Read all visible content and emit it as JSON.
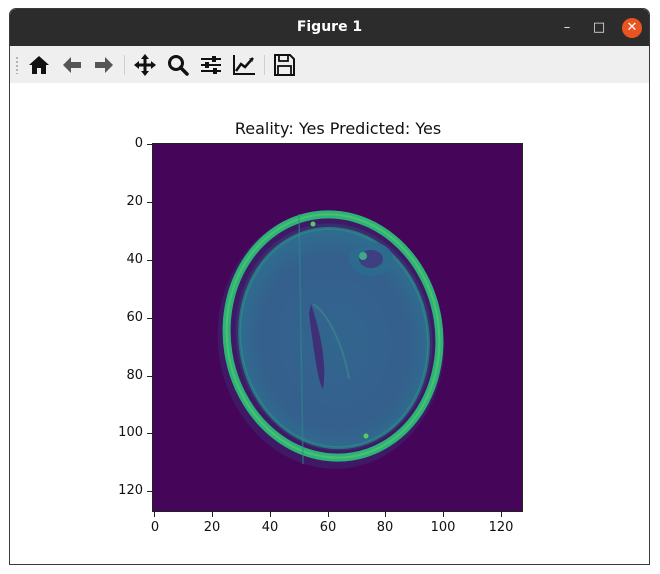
{
  "window": {
    "title": "Figure 1"
  },
  "window_controls": {
    "minimize": "–",
    "maximize": "□",
    "close": "✕"
  },
  "toolbar": {
    "buttons": [
      {
        "name": "home-button",
        "icon": "home-icon"
      },
      {
        "name": "back-button",
        "icon": "arrow-left-icon"
      },
      {
        "name": "forward-button",
        "icon": "arrow-right-icon"
      },
      {
        "name": "pan-button",
        "icon": "move-icon"
      },
      {
        "name": "zoom-button",
        "icon": "magnifier-icon"
      },
      {
        "name": "configure-subplots-button",
        "icon": "sliders-icon"
      },
      {
        "name": "edit-axis-button",
        "icon": "line-chart-icon"
      },
      {
        "name": "save-button",
        "icon": "floppy-disk-icon"
      }
    ]
  },
  "plot": {
    "title": "Reality: Yes Predicted: Yes",
    "image_colormap": "viridis",
    "xticks": [
      "0",
      "20",
      "40",
      "60",
      "80",
      "100",
      "120"
    ],
    "yticks": [
      "0",
      "20",
      "40",
      "60",
      "80",
      "100",
      "120"
    ],
    "xlim": [
      -0.5,
      127.5
    ],
    "ylim": [
      127.5,
      -0.5
    ]
  }
}
